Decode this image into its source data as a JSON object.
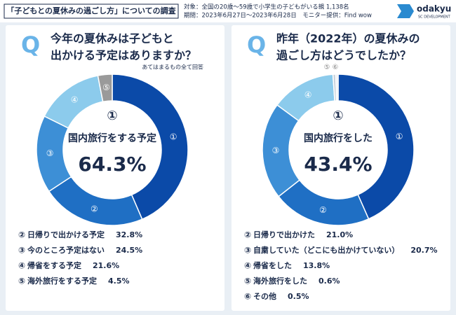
{
  "header": {
    "title": "「子どもとの夏休みの過ごし方」についての調査",
    "target": "対象：全国の20歳〜59歳で小学生の子どもがいる親 1,138名",
    "period": "期間：2023年6月27日〜2023年6月28日　モニター提供：Find wow",
    "logo": "odakyu",
    "logo_sub": "SC DEVELOPMENT",
    "q_mark": "Q"
  },
  "chart_data": [
    {
      "type": "pie",
      "question": [
        "今年の夏休みは子どもと",
        "出かける予定はありますか？"
      ],
      "note": "あてはまるもの全て回答",
      "markers": [
        "①",
        "②",
        "③",
        "④",
        "⑤"
      ],
      "categories": [
        "国内旅行をする予定",
        "日帰りで出かける予定",
        "今のところ予定はない",
        "帰省をする予定",
        "海外旅行をする予定"
      ],
      "values": [
        64.3,
        32.8,
        24.5,
        21.6,
        4.5
      ],
      "value_labels": [
        "64.3%",
        "32.8%",
        "24.5%",
        "21.6%",
        "4.5%"
      ],
      "colors": [
        "#0b4aa8",
        "#1f6fc4",
        "#3d8fd6",
        "#8ccbec",
        "#9a9a9a"
      ]
    },
    {
      "type": "pie",
      "question": [
        "昨年（2022年）の夏休みの",
        "過ごし方はどうでしたか？"
      ],
      "markers": [
        "①",
        "②",
        "③",
        "④",
        "⑤",
        "⑥"
      ],
      "categories": [
        "国内旅行をした",
        "日帰りで出かけた",
        "自粛していた（どこにも出かけていない）",
        "帰省をした",
        "海外旅行をした",
        "その他"
      ],
      "values": [
        43.4,
        21.0,
        20.7,
        13.8,
        0.6,
        0.5
      ],
      "value_labels": [
        "43.4%",
        "21.0%",
        "20.7%",
        "13.8%",
        "0.6%",
        "0.5%"
      ],
      "colors": [
        "#0b4aa8",
        "#1f6fc4",
        "#3d8fd6",
        "#8ccbec",
        "#c9d2dc",
        "#e8edf3"
      ]
    }
  ]
}
